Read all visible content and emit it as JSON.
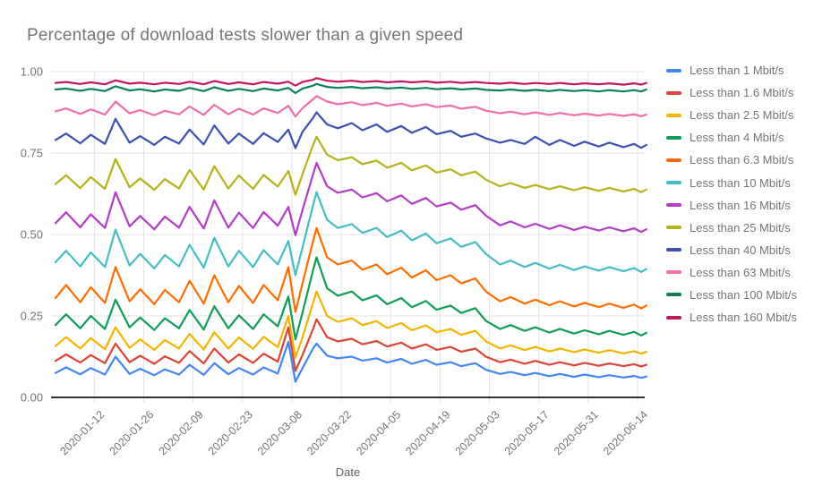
{
  "chart_data": {
    "type": "line",
    "title": "Percentage of download tests slower than a given speed",
    "xlabel": "Date",
    "ylabel": "",
    "ylim": [
      0,
      1
    ],
    "grid": true,
    "legend_position": "right",
    "axis_text_color": "#757575",
    "grid_color": "#e3e3e3",
    "baseline_color": "#333333",
    "yticks": [
      {
        "label": "1.00",
        "value": 1.0
      },
      {
        "label": "0.75",
        "value": 0.75
      },
      {
        "label": "0.50",
        "value": 0.5
      },
      {
        "label": "0.25",
        "value": 0.25
      },
      {
        "label": "0.00",
        "value": 0.0
      }
    ],
    "x_unit": "days from 2020-01-01",
    "xticks": [
      {
        "label": "2020-01-12",
        "day": 11
      },
      {
        "label": "2020-01-26",
        "day": 25
      },
      {
        "label": "2020-02-09",
        "day": 39
      },
      {
        "label": "2020-02-23",
        "day": 53
      },
      {
        "label": "2020-03-08",
        "day": 67
      },
      {
        "label": "2020-03-22",
        "day": 81
      },
      {
        "label": "2020-04-05",
        "day": 95
      },
      {
        "label": "2020-04-19",
        "day": 109
      },
      {
        "label": "2020-05-03",
        "day": 123
      },
      {
        "label": "2020-05-17",
        "day": 137
      },
      {
        "label": "2020-05-31",
        "day": 151
      },
      {
        "label": "2020-06-14",
        "day": 165
      }
    ],
    "x_days": [
      0,
      3,
      7,
      10,
      14,
      17,
      21,
      24,
      28,
      31,
      35,
      38,
      42,
      45,
      49,
      52,
      56,
      59,
      63,
      66,
      68,
      70,
      73,
      74,
      77,
      80,
      84,
      87,
      91,
      94,
      98,
      101,
      105,
      108,
      112,
      115,
      119,
      122,
      126,
      129,
      133,
      136,
      140,
      143,
      147,
      150,
      154,
      157,
      161,
      164,
      166,
      167.5
    ],
    "series": [
      {
        "name": "Less than 1 Mbit/s",
        "color": "#4285F4",
        "values": [
          0.075,
          0.092,
          0.071,
          0.09,
          0.07,
          0.125,
          0.072,
          0.088,
          0.068,
          0.086,
          0.07,
          0.1,
          0.069,
          0.105,
          0.071,
          0.09,
          0.07,
          0.092,
          0.073,
          0.17,
          0.048,
          0.09,
          0.15,
          0.165,
          0.128,
          0.12,
          0.125,
          0.113,
          0.12,
          0.107,
          0.118,
          0.103,
          0.115,
          0.1,
          0.108,
          0.096,
          0.105,
          0.085,
          0.072,
          0.078,
          0.068,
          0.075,
          0.065,
          0.072,
          0.063,
          0.07,
          0.062,
          0.068,
          0.061,
          0.066,
          0.06,
          0.064
        ]
      },
      {
        "name": "Less than 1.6 Mbit/s",
        "color": "#DB4437",
        "values": [
          0.112,
          0.132,
          0.107,
          0.13,
          0.105,
          0.165,
          0.108,
          0.128,
          0.103,
          0.126,
          0.106,
          0.142,
          0.104,
          0.15,
          0.107,
          0.132,
          0.106,
          0.134,
          0.11,
          0.215,
          0.082,
          0.13,
          0.21,
          0.24,
          0.185,
          0.172,
          0.18,
          0.163,
          0.173,
          0.156,
          0.168,
          0.15,
          0.163,
          0.146,
          0.155,
          0.14,
          0.15,
          0.125,
          0.108,
          0.116,
          0.103,
          0.112,
          0.1,
          0.108,
          0.098,
          0.106,
          0.097,
          0.104,
          0.096,
          0.102,
          0.095,
          0.1
        ]
      },
      {
        "name": "Less than 2.5 Mbit/s",
        "color": "#F4B400",
        "values": [
          0.158,
          0.185,
          0.15,
          0.182,
          0.148,
          0.215,
          0.152,
          0.178,
          0.146,
          0.176,
          0.15,
          0.195,
          0.147,
          0.2,
          0.15,
          0.184,
          0.149,
          0.186,
          0.154,
          0.25,
          0.122,
          0.185,
          0.29,
          0.325,
          0.25,
          0.232,
          0.243,
          0.222,
          0.234,
          0.213,
          0.228,
          0.206,
          0.221,
          0.2,
          0.21,
          0.192,
          0.204,
          0.172,
          0.15,
          0.16,
          0.145,
          0.155,
          0.141,
          0.15,
          0.139,
          0.147,
          0.137,
          0.145,
          0.135,
          0.142,
          0.134,
          0.14
        ]
      },
      {
        "name": "Less than 4 Mbit/s",
        "color": "#0F9D58",
        "values": [
          0.222,
          0.255,
          0.212,
          0.25,
          0.21,
          0.3,
          0.215,
          0.245,
          0.207,
          0.243,
          0.212,
          0.268,
          0.208,
          0.28,
          0.212,
          0.252,
          0.21,
          0.255,
          0.218,
          0.31,
          0.178,
          0.26,
          0.39,
          0.43,
          0.335,
          0.312,
          0.325,
          0.298,
          0.313,
          0.286,
          0.305,
          0.277,
          0.296,
          0.269,
          0.282,
          0.259,
          0.274,
          0.235,
          0.21,
          0.222,
          0.204,
          0.215,
          0.199,
          0.21,
          0.196,
          0.206,
          0.194,
          0.204,
          0.192,
          0.201,
          0.19,
          0.198
        ]
      },
      {
        "name": "Less than 6.3 Mbit/s",
        "color": "#FF6D00",
        "values": [
          0.305,
          0.345,
          0.292,
          0.338,
          0.29,
          0.4,
          0.295,
          0.332,
          0.286,
          0.33,
          0.292,
          0.358,
          0.288,
          0.375,
          0.292,
          0.342,
          0.29,
          0.345,
          0.298,
          0.4,
          0.262,
          0.35,
          0.48,
          0.52,
          0.43,
          0.408,
          0.42,
          0.392,
          0.408,
          0.378,
          0.398,
          0.368,
          0.39,
          0.36,
          0.375,
          0.35,
          0.365,
          0.325,
          0.295,
          0.308,
          0.288,
          0.3,
          0.283,
          0.295,
          0.279,
          0.29,
          0.277,
          0.288,
          0.275,
          0.285,
          0.273,
          0.282
        ]
      },
      {
        "name": "Less than 10 Mbit/s",
        "color": "#46BDC6",
        "values": [
          0.415,
          0.45,
          0.402,
          0.445,
          0.4,
          0.515,
          0.405,
          0.44,
          0.396,
          0.437,
          0.402,
          0.468,
          0.398,
          0.49,
          0.402,
          0.45,
          0.4,
          0.452,
          0.408,
          0.48,
          0.375,
          0.46,
          0.59,
          0.63,
          0.545,
          0.52,
          0.532,
          0.505,
          0.52,
          0.492,
          0.512,
          0.482,
          0.503,
          0.473,
          0.488,
          0.462,
          0.477,
          0.44,
          0.408,
          0.42,
          0.4,
          0.413,
          0.395,
          0.407,
          0.391,
          0.402,
          0.389,
          0.4,
          0.387,
          0.397,
          0.385,
          0.394
        ]
      },
      {
        "name": "Less than 16 Mbit/s",
        "color": "#B33DC6",
        "values": [
          0.535,
          0.568,
          0.522,
          0.562,
          0.52,
          0.63,
          0.525,
          0.557,
          0.516,
          0.555,
          0.521,
          0.585,
          0.518,
          0.605,
          0.521,
          0.567,
          0.52,
          0.569,
          0.527,
          0.585,
          0.498,
          0.575,
          0.685,
          0.72,
          0.648,
          0.628,
          0.638,
          0.614,
          0.627,
          0.602,
          0.62,
          0.594,
          0.612,
          0.586,
          0.598,
          0.576,
          0.59,
          0.558,
          0.528,
          0.54,
          0.522,
          0.533,
          0.517,
          0.528,
          0.514,
          0.524,
          0.512,
          0.522,
          0.51,
          0.519,
          0.508,
          0.516
        ]
      },
      {
        "name": "Less than 25 Mbit/s",
        "color": "#B5B21B",
        "values": [
          0.655,
          0.682,
          0.642,
          0.676,
          0.64,
          0.732,
          0.645,
          0.672,
          0.637,
          0.67,
          0.641,
          0.698,
          0.638,
          0.71,
          0.641,
          0.681,
          0.64,
          0.683,
          0.647,
          0.695,
          0.622,
          0.685,
          0.775,
          0.8,
          0.745,
          0.728,
          0.737,
          0.716,
          0.727,
          0.705,
          0.72,
          0.697,
          0.712,
          0.69,
          0.7,
          0.682,
          0.693,
          0.668,
          0.648,
          0.658,
          0.643,
          0.652,
          0.639,
          0.648,
          0.636,
          0.645,
          0.634,
          0.643,
          0.632,
          0.64,
          0.63,
          0.638
        ]
      },
      {
        "name": "Less than 40 Mbit/s",
        "color": "#3C50B1",
        "values": [
          0.79,
          0.81,
          0.78,
          0.806,
          0.778,
          0.855,
          0.782,
          0.802,
          0.775,
          0.8,
          0.779,
          0.822,
          0.776,
          0.835,
          0.779,
          0.81,
          0.778,
          0.811,
          0.784,
          0.822,
          0.765,
          0.815,
          0.858,
          0.875,
          0.838,
          0.826,
          0.842,
          0.82,
          0.838,
          0.815,
          0.833,
          0.812,
          0.83,
          0.808,
          0.818,
          0.8,
          0.81,
          0.795,
          0.782,
          0.79,
          0.778,
          0.8,
          0.775,
          0.79,
          0.772,
          0.785,
          0.77,
          0.782,
          0.768,
          0.778,
          0.766,
          0.775
        ]
      },
      {
        "name": "Less than 63 Mbit/s",
        "color": "#F06EA9",
        "values": [
          0.878,
          0.887,
          0.87,
          0.884,
          0.868,
          0.908,
          0.872,
          0.882,
          0.866,
          0.88,
          0.869,
          0.893,
          0.867,
          0.898,
          0.869,
          0.886,
          0.868,
          0.887,
          0.873,
          0.895,
          0.862,
          0.888,
          0.915,
          0.925,
          0.908,
          0.9,
          0.906,
          0.897,
          0.904,
          0.895,
          0.902,
          0.893,
          0.9,
          0.891,
          0.896,
          0.886,
          0.892,
          0.88,
          0.872,
          0.877,
          0.869,
          0.875,
          0.867,
          0.873,
          0.866,
          0.871,
          0.865,
          0.87,
          0.864,
          0.869,
          0.863,
          0.868
        ]
      },
      {
        "name": "Less than 100 Mbit/s",
        "color": "#0D7F61",
        "values": [
          0.945,
          0.948,
          0.941,
          0.947,
          0.94,
          0.955,
          0.942,
          0.946,
          0.939,
          0.945,
          0.941,
          0.95,
          0.94,
          0.952,
          0.941,
          0.947,
          0.94,
          0.948,
          0.942,
          0.95,
          0.934,
          0.948,
          0.957,
          0.962,
          0.953,
          0.95,
          0.953,
          0.949,
          0.952,
          0.948,
          0.951,
          0.947,
          0.95,
          0.946,
          0.949,
          0.945,
          0.948,
          0.944,
          0.942,
          0.945,
          0.941,
          0.944,
          0.94,
          0.944,
          0.94,
          0.943,
          0.939,
          0.943,
          0.939,
          0.943,
          0.939,
          0.945
        ]
      },
      {
        "name": "Less than 160 Mbit/s",
        "color": "#C1175C",
        "values": [
          0.965,
          0.968,
          0.962,
          0.967,
          0.961,
          0.973,
          0.963,
          0.966,
          0.961,
          0.966,
          0.962,
          0.969,
          0.961,
          0.971,
          0.962,
          0.967,
          0.961,
          0.968,
          0.963,
          0.969,
          0.957,
          0.968,
          0.975,
          0.98,
          0.972,
          0.969,
          0.972,
          0.968,
          0.971,
          0.967,
          0.97,
          0.967,
          0.97,
          0.966,
          0.969,
          0.965,
          0.968,
          0.965,
          0.963,
          0.966,
          0.962,
          0.965,
          0.962,
          0.965,
          0.961,
          0.964,
          0.961,
          0.964,
          0.96,
          0.964,
          0.96,
          0.965
        ]
      }
    ]
  }
}
